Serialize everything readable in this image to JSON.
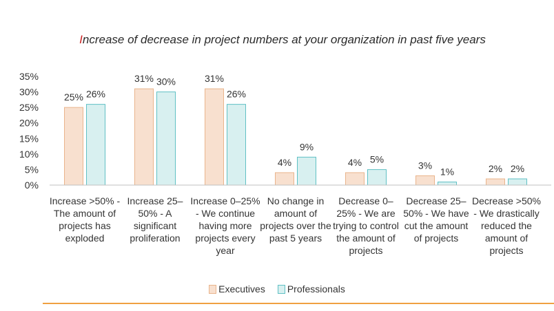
{
  "chart_data": {
    "type": "bar",
    "title_first": "I",
    "title_rest": "ncrease of decrease in project numbers at your organization in past five years",
    "categories": [
      "Increase >50% - The amount of projects has exploded",
      "Increase 25–50% - A significant proliferation",
      "Increase 0–25% - We continue having more projects every year",
      "No change in amount of projects over the past 5 years",
      "Decrease 0–25% - We are trying to control the amount of projects",
      "Decrease 25–50% - We have cut the amount of projects",
      "Decrease >50% - We drastically reduced the amount of projects"
    ],
    "series": [
      {
        "name": "Executives",
        "values": [
          25,
          31,
          31,
          4,
          4,
          3,
          2
        ],
        "labels": [
          "25%",
          "31%",
          "31%",
          "4%",
          "4%",
          "3%",
          "2%"
        ]
      },
      {
        "name": "Professionals",
        "values": [
          26,
          30,
          26,
          9,
          5,
          1,
          2
        ],
        "labels": [
          "26%",
          "30%",
          "26%",
          "9%",
          "5%",
          "1%",
          "2%"
        ]
      }
    ],
    "yticks": [
      "0%",
      "5%",
      "10%",
      "15%",
      "20%",
      "25%",
      "30%",
      "35%"
    ],
    "ylim": [
      0,
      35
    ],
    "legend_position": "bottom",
    "colors": {
      "executives_fill": "#f8e0cf",
      "executives_edge": "#e9b48c",
      "professionals_fill": "#d8f0f0",
      "professionals_edge": "#5fc0c4",
      "axis": "#bfbfbf",
      "accent_line": "#f0a040",
      "title_first_letter": "#cc2222"
    }
  }
}
